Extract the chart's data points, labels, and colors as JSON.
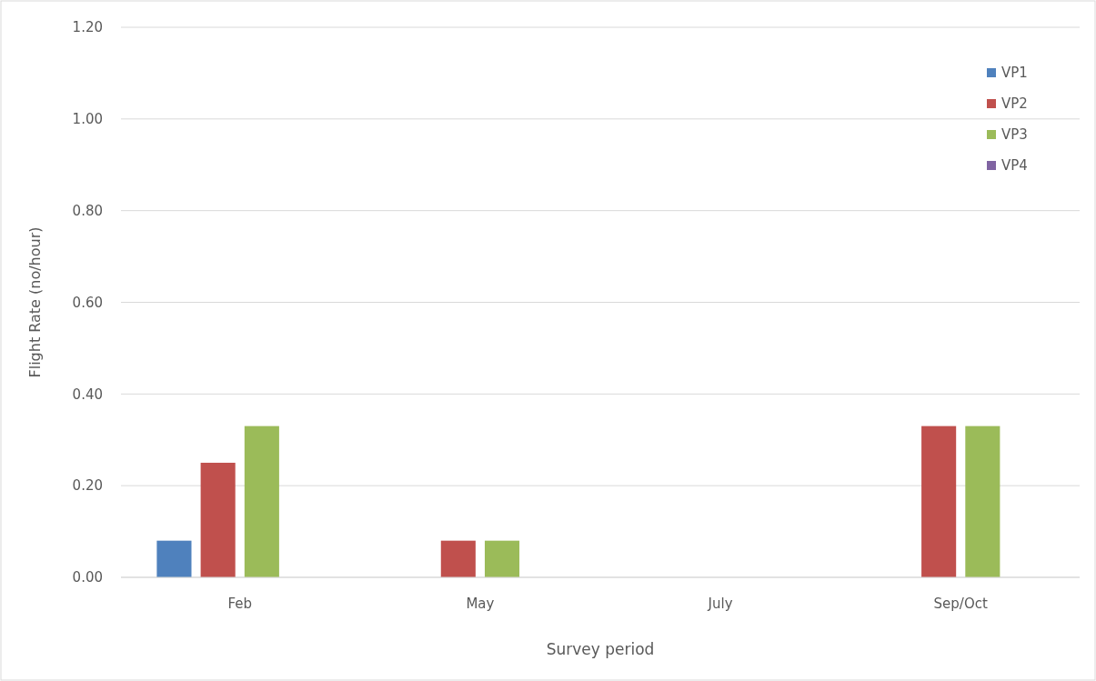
{
  "chart_data": {
    "type": "bar",
    "xlabel": "Survey period",
    "ylabel": "Flight Rate (no/hour)",
    "categories": [
      "Feb",
      "May",
      "July",
      "Sep/Oct"
    ],
    "series": [
      {
        "name": "VP1",
        "color": "#4f81bd",
        "values": [
          0.08,
          0,
          0,
          0
        ]
      },
      {
        "name": "VP2",
        "color": "#c0504d",
        "values": [
          0.25,
          0.08,
          0,
          0.33
        ]
      },
      {
        "name": "VP3",
        "color": "#9bbb59",
        "values": [
          0.33,
          0.08,
          0,
          0.33
        ]
      },
      {
        "name": "VP4",
        "color": "#8064a2",
        "values": [
          0,
          0,
          0,
          0
        ]
      }
    ],
    "ylim": [
      0,
      1.2
    ],
    "yticks": [
      {
        "value": 0,
        "label": "0.00"
      },
      {
        "value": 0.2,
        "label": "0.20"
      },
      {
        "value": 0.4,
        "label": "0.40"
      },
      {
        "value": 0.6,
        "label": "0.60"
      },
      {
        "value": 0.8,
        "label": "0.80"
      },
      {
        "value": 1,
        "label": "1.00"
      },
      {
        "value": 1.2,
        "label": "1.20"
      }
    ],
    "grid": "y",
    "legend": "top right"
  }
}
